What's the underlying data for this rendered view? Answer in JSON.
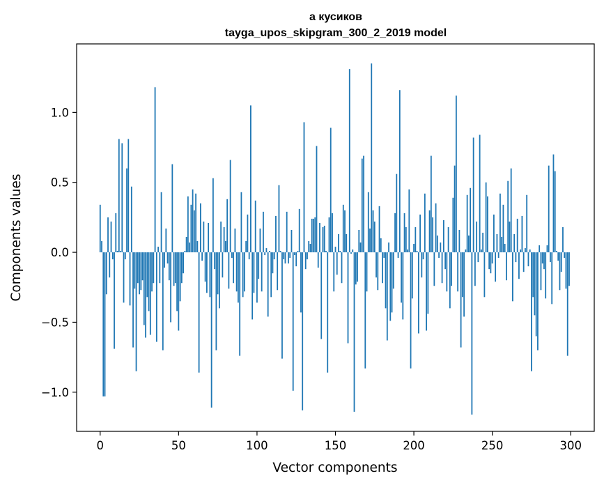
{
  "chart_data": {
    "type": "bar",
    "title_line1": "а кусиков",
    "title_line2": "tayga_upos_skipgram_300_2_2019 model",
    "xlabel": "Vector components",
    "ylabel": "Components values",
    "xlim": [
      -15,
      315
    ],
    "ylim": [
      -1.28,
      1.49
    ],
    "xticks": [
      0,
      50,
      100,
      150,
      200,
      250,
      300
    ],
    "yticks": [
      -1.0,
      -0.5,
      0.0,
      0.5,
      1.0
    ],
    "ytick_labels": [
      "−1.0",
      "−0.5",
      "0.0",
      "0.5",
      "1.0"
    ],
    "bar_color": "#1f77b4",
    "values": [
      0.34,
      0.08,
      -1.03,
      -1.03,
      -0.3,
      0.25,
      -0.18,
      0.22,
      -0.05,
      -0.69,
      0.28,
      0.01,
      0.81,
      0.01,
      0.78,
      -0.36,
      -0.05,
      0.6,
      0.81,
      -0.38,
      0.47,
      -0.68,
      -0.26,
      -0.85,
      -0.22,
      -0.3,
      -0.27,
      -0.2,
      -0.52,
      -0.61,
      -0.32,
      -0.42,
      -0.59,
      -0.28,
      -0.22,
      1.18,
      -0.64,
      0.04,
      -0.22,
      0.43,
      -0.7,
      -0.11,
      0.17,
      -0.08,
      -0.2,
      -0.5,
      0.63,
      -0.24,
      -0.22,
      -0.42,
      -0.56,
      -0.35,
      -0.22,
      -0.15,
      0.01,
      0.11,
      0.4,
      0.07,
      0.34,
      0.45,
      0.3,
      0.42,
      0.08,
      -0.86,
      0.35,
      -0.06,
      0.22,
      -0.21,
      -0.29,
      0.21,
      -0.32,
      -1.11,
      0.53,
      -0.12,
      -0.7,
      -0.3,
      -0.4,
      0.22,
      -0.18,
      0.18,
      0.08,
      0.38,
      -0.26,
      0.66,
      -0.04,
      -0.22,
      0.17,
      -0.28,
      -0.36,
      -0.74,
      0.43,
      -0.32,
      -0.28,
      0.08,
      0.27,
      -0.05,
      1.05,
      -0.48,
      -0.29,
      0.37,
      -0.36,
      -0.19,
      0.17,
      -0.28,
      0.29,
      -0.02,
      0.03,
      -0.46,
      0.01,
      -0.32,
      -0.15,
      -0.05,
      0.26,
      -0.27,
      0.48,
      0.01,
      -0.76,
      -0.05,
      -0.08,
      0.29,
      -0.08,
      -0.04,
      0.16,
      -0.99,
      -0.02,
      -0.1,
      0.01,
      0.31,
      -0.43,
      -1.13,
      0.93,
      -0.12,
      -0.05,
      0.08,
      0.06,
      0.24,
      0.24,
      0.25,
      0.76,
      -0.11,
      0.21,
      -0.62,
      0.18,
      0.19,
      0.01,
      -0.86,
      0.25,
      0.89,
      0.28,
      -0.28,
      0.04,
      -0.16,
      0.13,
      0.01,
      -0.22,
      0.34,
      0.3,
      0.13,
      -0.65,
      1.31,
      -0.01,
      0.02,
      -1.14,
      -0.23,
      -0.21,
      0.16,
      0.07,
      0.67,
      0.69,
      -0.83,
      -0.28,
      0.43,
      0.17,
      1.35,
      0.3,
      0.22,
      -0.18,
      -0.27,
      0.33,
      0.1,
      -0.22,
      -0.04,
      -0.4,
      -0.63,
      0.07,
      -0.49,
      -0.43,
      -0.26,
      0.28,
      0.56,
      -0.04,
      1.16,
      -0.36,
      -0.48,
      0.28,
      0.18,
      0.02,
      0.45,
      -0.83,
      -0.33,
      0.06,
      0.18,
      0.01,
      -0.58,
      0.27,
      -0.18,
      -0.05,
      0.42,
      -0.56,
      -0.44,
      0.3,
      0.69,
      0.25,
      -0.24,
      0.35,
      0.12,
      -0.04,
      0.07,
      -0.22,
      0.23,
      -0.12,
      -0.28,
      0.18,
      -0.4,
      -0.24,
      0.39,
      0.62,
      1.12,
      -0.28,
      0.16,
      -0.68,
      -0.32,
      -0.46,
      0.02,
      0.41,
      0.12,
      0.46,
      -1.16,
      0.82,
      -0.24,
      0.22,
      -0.07,
      0.84,
      0.02,
      0.14,
      -0.32,
      0.5,
      0.4,
      -0.12,
      -0.15,
      -0.08,
      0.27,
      -0.21,
      0.13,
      -0.04,
      0.42,
      0.11,
      0.34,
      0.06,
      -0.2,
      0.51,
      0.22,
      0.6,
      -0.35,
      0.13,
      -0.07,
      0.24,
      -0.19,
      0.02,
      0.26,
      -0.14,
      0.03,
      0.41,
      -0.1,
      0.02,
      -0.85,
      -0.32,
      -0.45,
      -0.6,
      -0.7,
      0.05,
      -0.27,
      -0.08,
      -0.12,
      -0.33,
      0.05,
      0.62,
      -0.07,
      -0.37,
      0.7,
      0.58,
      0.01,
      -0.06,
      -0.27,
      -0.14,
      0.18,
      -0.04,
      -0.26,
      -0.74,
      -0.24
    ]
  }
}
